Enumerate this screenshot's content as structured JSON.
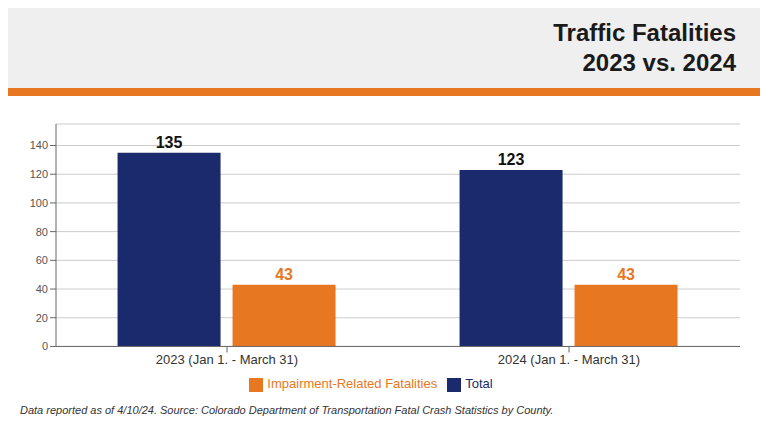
{
  "chart_data": {
    "type": "bar",
    "title": "Traffic Fatalities",
    "subtitle": "2023 vs. 2024",
    "categories": [
      "2023 (Jan 1. - March 31)",
      "2024 (Jan 1. - March 31)"
    ],
    "series": [
      {
        "name": "Total",
        "color": "#1a2a6c",
        "values": [
          135,
          123
        ]
      },
      {
        "name": "Impairment-Related Fatalities",
        "color": "#e87722",
        "values": [
          43,
          43
        ]
      }
    ],
    "ylim": [
      0,
      155
    ],
    "yticks": [
      0,
      20,
      40,
      60,
      80,
      100,
      120,
      140
    ],
    "grid": true,
    "legend": "bottom",
    "data_labels": true,
    "annotations": [
      "Data reported as of 4/10/24. Source: Colorado Department of Transportation Fatal Crash Statistics by County."
    ]
  }
}
